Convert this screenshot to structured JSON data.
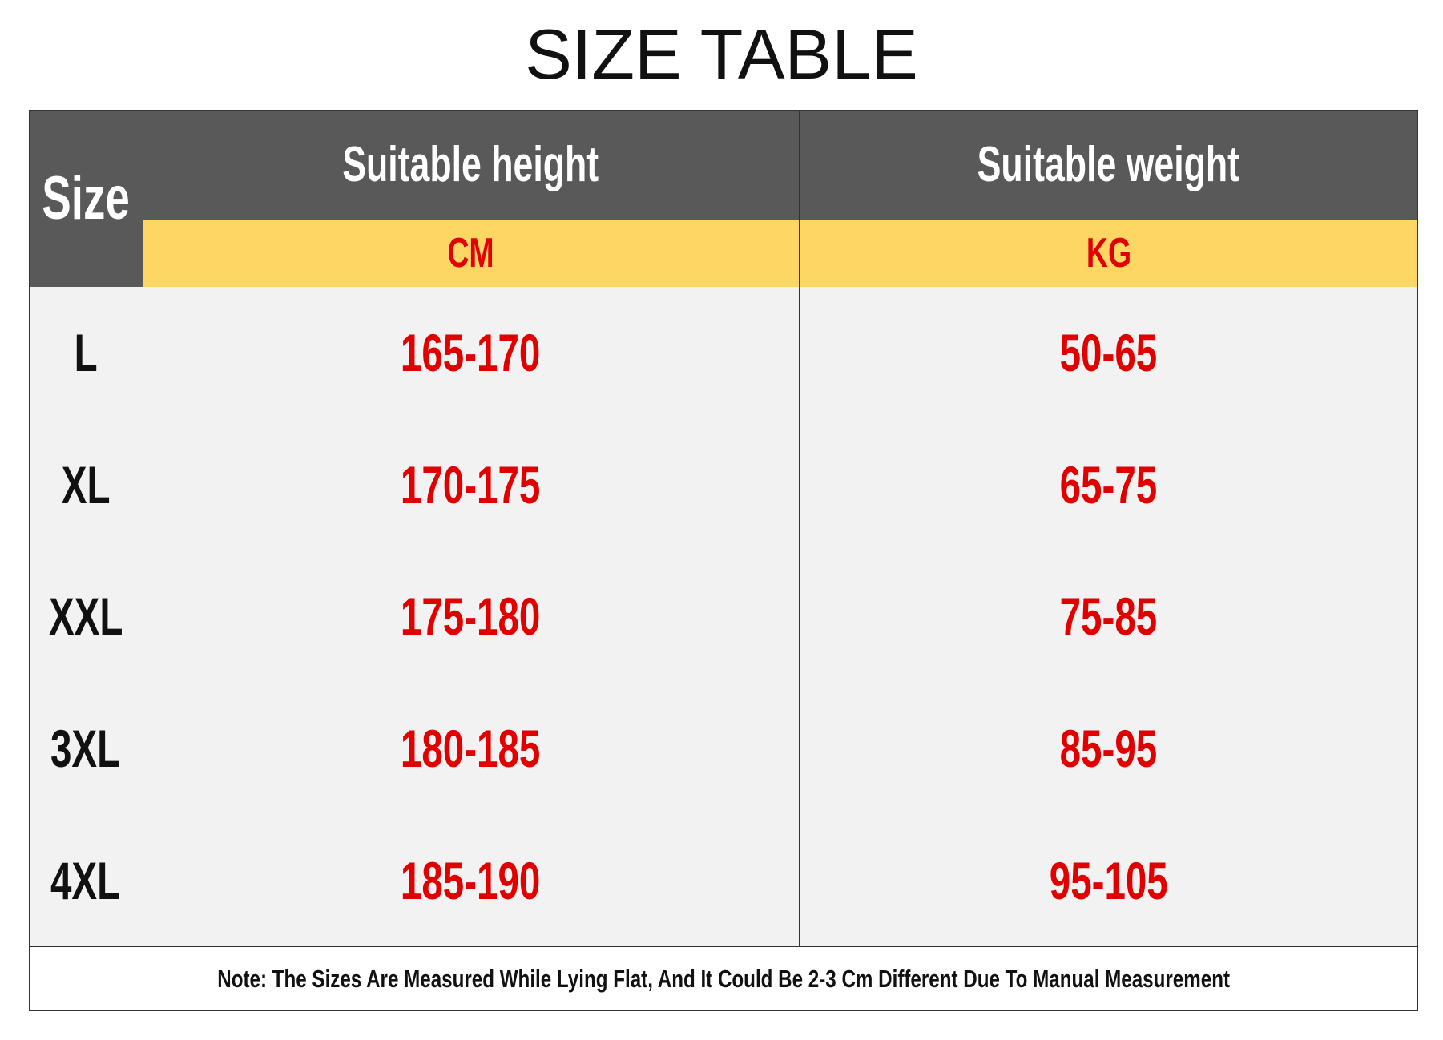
{
  "title": "SIZE TABLE",
  "table": {
    "header": {
      "size": "Size",
      "height": "Suitable height",
      "weight": "Suitable weight",
      "height_unit": "CM",
      "weight_unit": "KG"
    },
    "rows": [
      [
        "L",
        "165-170",
        "50-65"
      ],
      [
        "XL",
        "170-175",
        "65-75"
      ],
      [
        "XXL",
        "175-180",
        "75-85"
      ],
      [
        "3XL",
        "180-185",
        "85-95"
      ],
      [
        "4XL",
        "185-190",
        "95-105"
      ]
    ]
  },
  "note": "Note: The Sizes Are Measured While Lying Flat, And It Could Be 2-3 Cm Different Due To Manual Measurement"
}
